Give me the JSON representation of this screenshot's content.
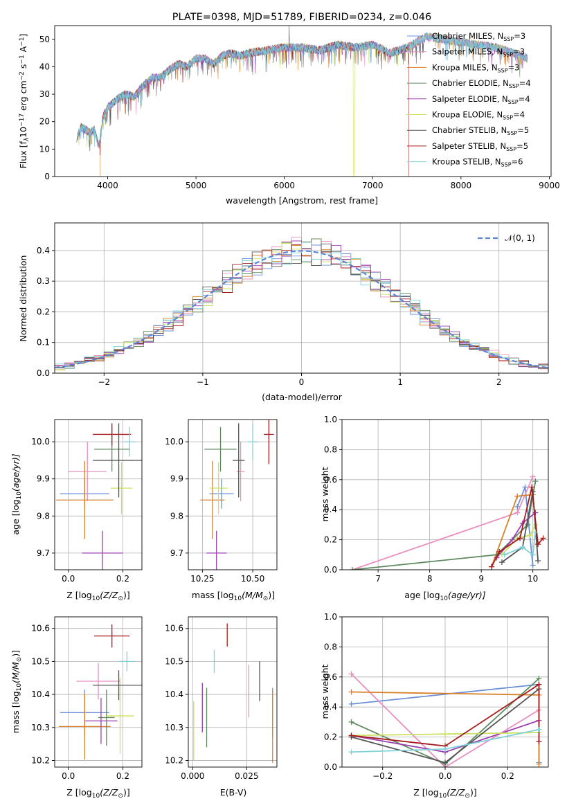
{
  "figure": {
    "title": "PLATE=0398, MJD=51789, FIBERID=0234, z=0.046",
    "colors": [
      "#6a8fd8",
      "#e88fc0",
      "#d9802a",
      "#5f8a5f",
      "#9b3fb0",
      "#c9e060",
      "#555555",
      "#a61c1c",
      "#7fd0d8"
    ]
  },
  "chart_data": [
    {
      "id": "spectrum",
      "type": "line",
      "xlabel": "wavelength [Angstrom, rest frame]",
      "ylabel": "Flux [f",
      "ylabel_sub": "λ",
      "ylabel_mid": "10",
      "ylabel_sup1": "−17",
      "ylabel_mid2": " erg cm",
      "ylabel_sup2": "−2",
      "ylabel_mid3": " s",
      "ylabel_sup3": "−1",
      "ylabel_mid4": " A",
      "ylabel_sup4": "−1",
      "ylabel_end": "]",
      "xlim": [
        3400,
        9020
      ],
      "ylim": [
        0,
        55
      ],
      "xticks": [
        4000,
        5000,
        6000,
        7000,
        8000,
        9000
      ],
      "yticks": [
        0,
        10,
        20,
        30,
        40,
        50
      ],
      "legend_loc": "right",
      "legend": [
        {
          "label": "Chabrier MILES, N",
          "sub": "SSP",
          "suffix": "=3"
        },
        {
          "label": "Salpeter MILES, N",
          "sub": "SSP",
          "suffix": "=3"
        },
        {
          "label": "Kroupa MILES, N",
          "sub": "SSP",
          "suffix": "=3"
        },
        {
          "label": "Chabrier ELODIE, N",
          "sub": "SSP",
          "suffix": "=4"
        },
        {
          "label": "Salpeter ELODIE, N",
          "sub": "SSP",
          "suffix": "=4"
        },
        {
          "label": "Kroupa ELODIE, N",
          "sub": "SSP",
          "suffix": "=4"
        },
        {
          "label": "Chabrier STELIB, N",
          "sub": "SSP",
          "suffix": "=5"
        },
        {
          "label": "Salpeter STELIB, N",
          "sub": "SSP",
          "suffix": "=5"
        },
        {
          "label": "Kroupa STELIB, N",
          "sub": "SSP",
          "suffix": "=6"
        }
      ],
      "envelope": [
        [
          3650,
          14
        ],
        [
          3700,
          18
        ],
        [
          3750,
          17
        ],
        [
          3800,
          16
        ],
        [
          3850,
          17
        ],
        [
          3900,
          11
        ],
        [
          3950,
          22
        ],
        [
          4000,
          25
        ],
        [
          4100,
          28
        ],
        [
          4200,
          30
        ],
        [
          4300,
          29
        ],
        [
          4400,
          33
        ],
        [
          4500,
          36
        ],
        [
          4600,
          36
        ],
        [
          4700,
          39
        ],
        [
          4800,
          41
        ],
        [
          4900,
          40
        ],
        [
          5000,
          43
        ],
        [
          5100,
          43
        ],
        [
          5200,
          41
        ],
        [
          5300,
          44
        ],
        [
          5400,
          45
        ],
        [
          5500,
          44
        ],
        [
          5600,
          45
        ],
        [
          5800,
          46
        ],
        [
          6000,
          47
        ],
        [
          6200,
          47
        ],
        [
          6400,
          46
        ],
        [
          6600,
          48
        ],
        [
          6800,
          47
        ],
        [
          7000,
          48
        ],
        [
          7200,
          45
        ],
        [
          7400,
          47
        ],
        [
          7600,
          51
        ],
        [
          7800,
          50
        ],
        [
          8000,
          49
        ],
        [
          8200,
          48
        ],
        [
          8400,
          47
        ],
        [
          8600,
          45
        ],
        [
          8750,
          43
        ]
      ]
    },
    {
      "id": "residuals",
      "type": "step",
      "xlabel": "(data-model)/error",
      "ylabel": "Normed distribution",
      "xlim": [
        -2.5,
        2.5
      ],
      "ylim": [
        0,
        0.49
      ],
      "xticks": [
        -2,
        -1,
        0,
        1,
        2
      ],
      "yticks": [
        0.0,
        0.1,
        0.2,
        0.3,
        0.4
      ],
      "grid": true,
      "legend_label": "𝒩(0, 1)",
      "legend_loc": "top-right",
      "bin_width": 0.1
    },
    {
      "id": "age_vs_Z",
      "type": "errorbar",
      "xlabel": "Z [log",
      "xlabel_sub": "10",
      "xlabel_end": "(Z/Z",
      "xlabel_sub2": "⊙",
      "xlabel_close": ")]",
      "ylabel": "age  [log",
      "ylabel_sub": "10",
      "ylabel_end": "(age/yr)]",
      "xlim": [
        -0.05,
        0.27
      ],
      "ylim": [
        9.655,
        10.06
      ],
      "xticks": [
        0.0,
        0.2
      ],
      "yticks": [
        9.7,
        9.8,
        9.9,
        10.0
      ],
      "grid": true,
      "points": [
        {
          "x": 0.06,
          "y": 9.86,
          "xerr": 0.09,
          "yerr": 0.04,
          "series": 0
        },
        {
          "x": 0.07,
          "y": 9.92,
          "xerr": 0.07,
          "yerr": 0.08,
          "series": 1
        },
        {
          "x": 0.06,
          "y": 9.843,
          "xerr": 0.105,
          "yerr": 0.105,
          "series": 2
        },
        {
          "x": 0.16,
          "y": 9.98,
          "xerr": 0.065,
          "yerr": 0.06,
          "series": 3
        },
        {
          "x": 0.125,
          "y": 9.7,
          "xerr": 0.075,
          "yerr": 0.06,
          "series": 4
        },
        {
          "x": 0.195,
          "y": 9.875,
          "xerr": 0.04,
          "yerr": 0.07,
          "series": 5
        },
        {
          "x": 0.185,
          "y": 9.95,
          "xerr": 0.095,
          "yerr": 0.1,
          "series": 6
        },
        {
          "x": 0.16,
          "y": 10.02,
          "xerr": 0.07,
          "yerr": 0.03,
          "series": 7
        },
        {
          "x": 0.225,
          "y": 10.0,
          "xerr": 0.02,
          "yerr": 0.04,
          "series": 8
        }
      ]
    },
    {
      "id": "age_vs_mass",
      "type": "errorbar",
      "xlabel": "mass [log",
      "xlabel_sub": "10",
      "xlabel_end": "(M/M",
      "xlabel_sub2": "⊙",
      "xlabel_close": ")]",
      "xlim": [
        10.18,
        10.62
      ],
      "ylim": [
        9.655,
        10.06
      ],
      "xticks": [
        10.25,
        10.5
      ],
      "yticks": [
        9.7,
        9.8,
        9.9,
        10.0
      ],
      "grid": true,
      "points": [
        {
          "x": 10.345,
          "y": 9.86,
          "xerr": 0.06,
          "yerr": 0.04,
          "series": 0
        },
        {
          "x": 10.44,
          "y": 9.92,
          "xerr": 0.02,
          "yerr": 0.08,
          "series": 1
        },
        {
          "x": 10.3,
          "y": 9.843,
          "xerr": 0.06,
          "yerr": 0.105,
          "series": 2
        },
        {
          "x": 10.34,
          "y": 9.98,
          "xerr": 0.08,
          "yerr": 0.06,
          "series": 3
        },
        {
          "x": 10.32,
          "y": 9.7,
          "xerr": 0.05,
          "yerr": 0.06,
          "series": 4
        },
        {
          "x": 10.33,
          "y": 9.875,
          "xerr": 0.045,
          "yerr": 0.07,
          "series": 5
        },
        {
          "x": 10.43,
          "y": 9.95,
          "xerr": 0.03,
          "yerr": 0.1,
          "series": 6
        },
        {
          "x": 10.58,
          "y": 10.02,
          "xerr": 0.025,
          "yerr": 0.08,
          "series": 7
        },
        {
          "x": 10.5,
          "y": 10.0,
          "xerr": 0.025,
          "yerr": 0.05,
          "series": 8
        }
      ]
    },
    {
      "id": "weight_vs_age",
      "type": "line",
      "xlabel": "age  [log",
      "xlabel_sub": "10",
      "xlabel_end": "(age/yr)]",
      "ylabel": "mass weight",
      "xlim": [
        6.3,
        10.3
      ],
      "ylim": [
        0,
        1.0
      ],
      "xticks": [
        7,
        8,
        9,
        10
      ],
      "yticks": [
        0.0,
        0.2,
        0.4,
        0.6,
        0.8,
        1.0
      ],
      "grid": true,
      "series": [
        {
          "series": 0,
          "points": [
            [
              9.7,
              0.42
            ],
            [
              9.85,
              0.55
            ],
            [
              10.0,
              0.03
            ]
          ]
        },
        {
          "series": 1,
          "points": [
            [
              6.5,
              0.0
            ],
            [
              9.7,
              0.38
            ],
            [
              10.0,
              0.62
            ]
          ]
        },
        {
          "series": 2,
          "points": [
            [
              9.2,
              0.02
            ],
            [
              9.7,
              0.49
            ],
            [
              10.0,
              0.5
            ]
          ]
        },
        {
          "series": 3,
          "points": [
            [
              6.5,
              0.0
            ],
            [
              9.3,
              0.1
            ],
            [
              9.9,
              0.3
            ],
            [
              10.05,
              0.59
            ]
          ]
        },
        {
          "series": 4,
          "points": [
            [
              9.3,
              0.08
            ],
            [
              9.6,
              0.2
            ],
            [
              9.8,
              0.31
            ],
            [
              10.05,
              0.38
            ]
          ]
        },
        {
          "series": 5,
          "points": [
            [
              9.4,
              0.1
            ],
            [
              9.7,
              0.21
            ],
            [
              9.95,
              0.23
            ],
            [
              10.05,
              0.3
            ]
          ]
        },
        {
          "series": 6,
          "points": [
            [
              9.4,
              0.05
            ],
            [
              9.8,
              0.15
            ],
            [
              10.0,
              0.52
            ],
            [
              10.1,
              0.06
            ]
          ]
        },
        {
          "series": 7,
          "points": [
            [
              9.2,
              0.02
            ],
            [
              9.35,
              0.12
            ],
            [
              9.75,
              0.21
            ],
            [
              9.98,
              0.55
            ],
            [
              10.1,
              0.17
            ],
            [
              10.2,
              0.21
            ]
          ]
        },
        {
          "series": 8,
          "points": [
            [
              9.45,
              0.1
            ],
            [
              9.8,
              0.15
            ],
            [
              10.0,
              0.1
            ],
            [
              10.05,
              0.25
            ]
          ]
        }
      ]
    },
    {
      "id": "mass_vs_Z",
      "type": "errorbar",
      "xlabel": "Z [log",
      "xlabel_sub": "10",
      "xlabel_end": "(Z/Z",
      "xlabel_sub2": "⊙",
      "xlabel_close": ")]",
      "ylabel": "mass [log",
      "ylabel_sub": "10",
      "ylabel_end": "(M/M",
      "ylabel_sub2": "⊙",
      "ylabel_close": ")]",
      "xlim": [
        -0.05,
        0.27
      ],
      "ylim": [
        10.18,
        10.635
      ],
      "xticks": [
        0.0,
        0.2
      ],
      "yticks": [
        10.2,
        10.3,
        10.4,
        10.5,
        10.6
      ],
      "grid": true,
      "points": [
        {
          "x": 0.06,
          "y": 10.345,
          "xerr": 0.09,
          "yerr": 0.07,
          "series": 0
        },
        {
          "x": 0.11,
          "y": 10.44,
          "xerr": 0.08,
          "yerr": 0.055,
          "series": 1
        },
        {
          "x": 0.06,
          "y": 10.303,
          "xerr": 0.095,
          "yerr": 0.1,
          "series": 2
        },
        {
          "x": 0.14,
          "y": 10.33,
          "xerr": 0.03,
          "yerr": 0.085,
          "series": 3
        },
        {
          "x": 0.12,
          "y": 10.32,
          "xerr": 0.06,
          "yerr": 0.07,
          "series": 4
        },
        {
          "x": 0.19,
          "y": 10.335,
          "xerr": 0.05,
          "yerr": 0.115,
          "series": 5
        },
        {
          "x": 0.185,
          "y": 10.428,
          "xerr": 0.095,
          "yerr": 0.045,
          "series": 6
        },
        {
          "x": 0.16,
          "y": 10.577,
          "xerr": 0.065,
          "yerr": 0.035,
          "series": 7
        },
        {
          "x": 0.215,
          "y": 10.5,
          "xerr": 0.03,
          "yerr": 0.03,
          "series": 8
        }
      ]
    },
    {
      "id": "mass_vs_ebv",
      "type": "errorbar",
      "xlabel": "E(B-V)",
      "xlim": [
        -0.002,
        0.039
      ],
      "ylim": [
        10.18,
        10.635
      ],
      "xticks": [
        0.0,
        0.025
      ],
      "yticks": [
        10.2,
        10.3,
        10.4,
        10.5,
        10.6
      ],
      "grid": true,
      "points": [
        {
          "x": 0.037,
          "y": 10.345,
          "xerr": 0,
          "yerr": 0.075,
          "series": 0
        },
        {
          "x": 0.026,
          "y": 10.41,
          "xerr": 0,
          "yerr": 0.08,
          "series": 1
        },
        {
          "x": 0.037,
          "y": 10.303,
          "xerr": 0,
          "yerr": 0.11,
          "series": 2
        },
        {
          "x": 0.0065,
          "y": 10.33,
          "xerr": 0,
          "yerr": 0.09,
          "series": 3
        },
        {
          "x": 0.0045,
          "y": 10.36,
          "xerr": 0,
          "yerr": 0.075,
          "series": 4
        },
        {
          "x": 0.0005,
          "y": 10.29,
          "xerr": 0,
          "yerr": 0.09,
          "series": 5
        },
        {
          "x": 0.031,
          "y": 10.44,
          "xerr": 0,
          "yerr": 0.06,
          "series": 6
        },
        {
          "x": 0.016,
          "y": 10.58,
          "xerr": 0,
          "yerr": 0.035,
          "series": 7
        },
        {
          "x": 0.01,
          "y": 10.5,
          "xerr": 0,
          "yerr": 0.035,
          "series": 8
        }
      ]
    },
    {
      "id": "weight_vs_Z",
      "type": "line",
      "xlabel": "Z [log",
      "xlabel_sub": "10",
      "xlabel_end": "(Z/Z",
      "xlabel_sub2": "⊙",
      "xlabel_close": ")]",
      "ylabel": "mass weight",
      "xlim": [
        -0.33,
        0.33
      ],
      "ylim": [
        0,
        1.0
      ],
      "xticks": [
        -0.2,
        0.0,
        0.2
      ],
      "yticks": [
        0.0,
        0.2,
        0.4,
        0.6,
        0.8,
        1.0
      ],
      "grid": true,
      "series": [
        {
          "series": 0,
          "points": [
            [
              -0.3,
              0.42
            ],
            [
              0.3,
              0.55
            ],
            [
              0.3,
              0.03
            ]
          ]
        },
        {
          "series": 1,
          "points": [
            [
              -0.3,
              0.62
            ],
            [
              0.0,
              0.0
            ],
            [
              0.3,
              0.38
            ]
          ]
        },
        {
          "series": 2,
          "points": [
            [
              -0.3,
              0.5
            ],
            [
              0.3,
              0.48
            ],
            [
              0.3,
              0.02
            ]
          ]
        },
        {
          "series": 3,
          "points": [
            [
              -0.3,
              0.3
            ],
            [
              0.0,
              0.02
            ],
            [
              0.3,
              0.59
            ]
          ]
        },
        {
          "series": 4,
          "points": [
            [
              -0.3,
              0.21
            ],
            [
              0.0,
              0.1
            ],
            [
              0.3,
              0.31
            ]
          ]
        },
        {
          "series": 5,
          "points": [
            [
              -0.3,
              0.21
            ],
            [
              0.0,
              0.22
            ],
            [
              0.3,
              0.23
            ]
          ]
        },
        {
          "series": 6,
          "points": [
            [
              -0.3,
              0.2
            ],
            [
              0.0,
              0.03
            ],
            [
              0.3,
              0.52
            ]
          ]
        },
        {
          "series": 7,
          "points": [
            [
              -0.3,
              0.21
            ],
            [
              0.0,
              0.14
            ],
            [
              0.3,
              0.55
            ],
            [
              0.3,
              0.17
            ]
          ]
        },
        {
          "series": 8,
          "points": [
            [
              -0.3,
              0.1
            ],
            [
              0.0,
              0.12
            ],
            [
              0.3,
              0.25
            ]
          ]
        }
      ]
    }
  ]
}
